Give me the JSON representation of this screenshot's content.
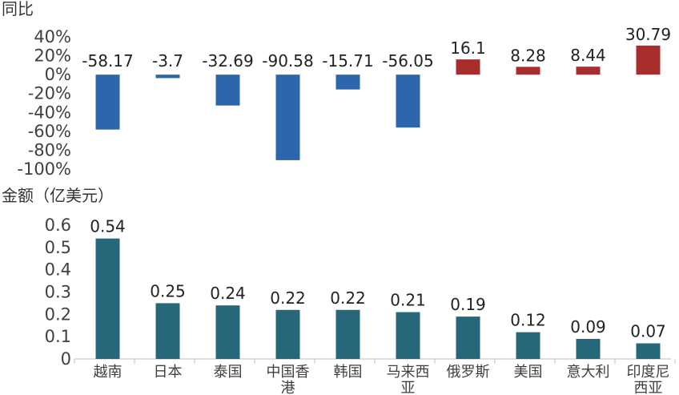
{
  "chart_data": [
    {
      "type": "bar",
      "title": "同比",
      "categories": [
        "越南",
        "日本",
        "泰国",
        "中国香港",
        "韩国",
        "马来西亚",
        "俄罗斯",
        "美国",
        "意大利",
        "印度尼西亚"
      ],
      "values": [
        -58.17,
        -3.7,
        -32.69,
        -90.58,
        -15.71,
        -56.05,
        16.1,
        8.28,
        8.44,
        30.79
      ],
      "value_labels": [
        "-58.17",
        "-3.7",
        "-32.69",
        "-90.58",
        "-15.71",
        "-56.05",
        "16.1",
        "8.28",
        "8.44",
        "30.79"
      ],
      "yticks": [
        "40%",
        "20%",
        "0%",
        "-20%",
        "-40%",
        "-60%",
        "-80%",
        "-100%"
      ],
      "ylim": [
        -100,
        40
      ],
      "colors": {
        "negative": "#2E66AE",
        "positive": "#A82D2D"
      },
      "grid": false
    },
    {
      "type": "bar",
      "title": "金额（亿美元）",
      "categories": [
        "越南",
        "日本",
        "泰国",
        "中国香港",
        "韩国",
        "马来西亚",
        "俄罗斯",
        "美国",
        "意大利",
        "印度尼西亚"
      ],
      "category_lines": [
        [
          "越南"
        ],
        [
          "日本"
        ],
        [
          "泰国"
        ],
        [
          "中国香",
          "港"
        ],
        [
          "韩国"
        ],
        [
          "马来西",
          "亚"
        ],
        [
          "俄罗斯"
        ],
        [
          "美国"
        ],
        [
          "意大利"
        ],
        [
          "印度尼",
          "西亚"
        ]
      ],
      "values": [
        0.54,
        0.25,
        0.24,
        0.22,
        0.22,
        0.21,
        0.19,
        0.12,
        0.09,
        0.07
      ],
      "value_labels": [
        "0.54",
        "0.25",
        "0.24",
        "0.22",
        "0.22",
        "0.21",
        "0.19",
        "0.12",
        "0.09",
        "0.07"
      ],
      "yticks": [
        "0.6",
        "0.5",
        "0.4",
        "0.3",
        "0.2",
        "0.1",
        "0"
      ],
      "ylim": [
        0,
        0.6
      ],
      "colors": {
        "bar": "#26677A",
        "axis": "#BFBFBF"
      },
      "grid": false
    }
  ]
}
